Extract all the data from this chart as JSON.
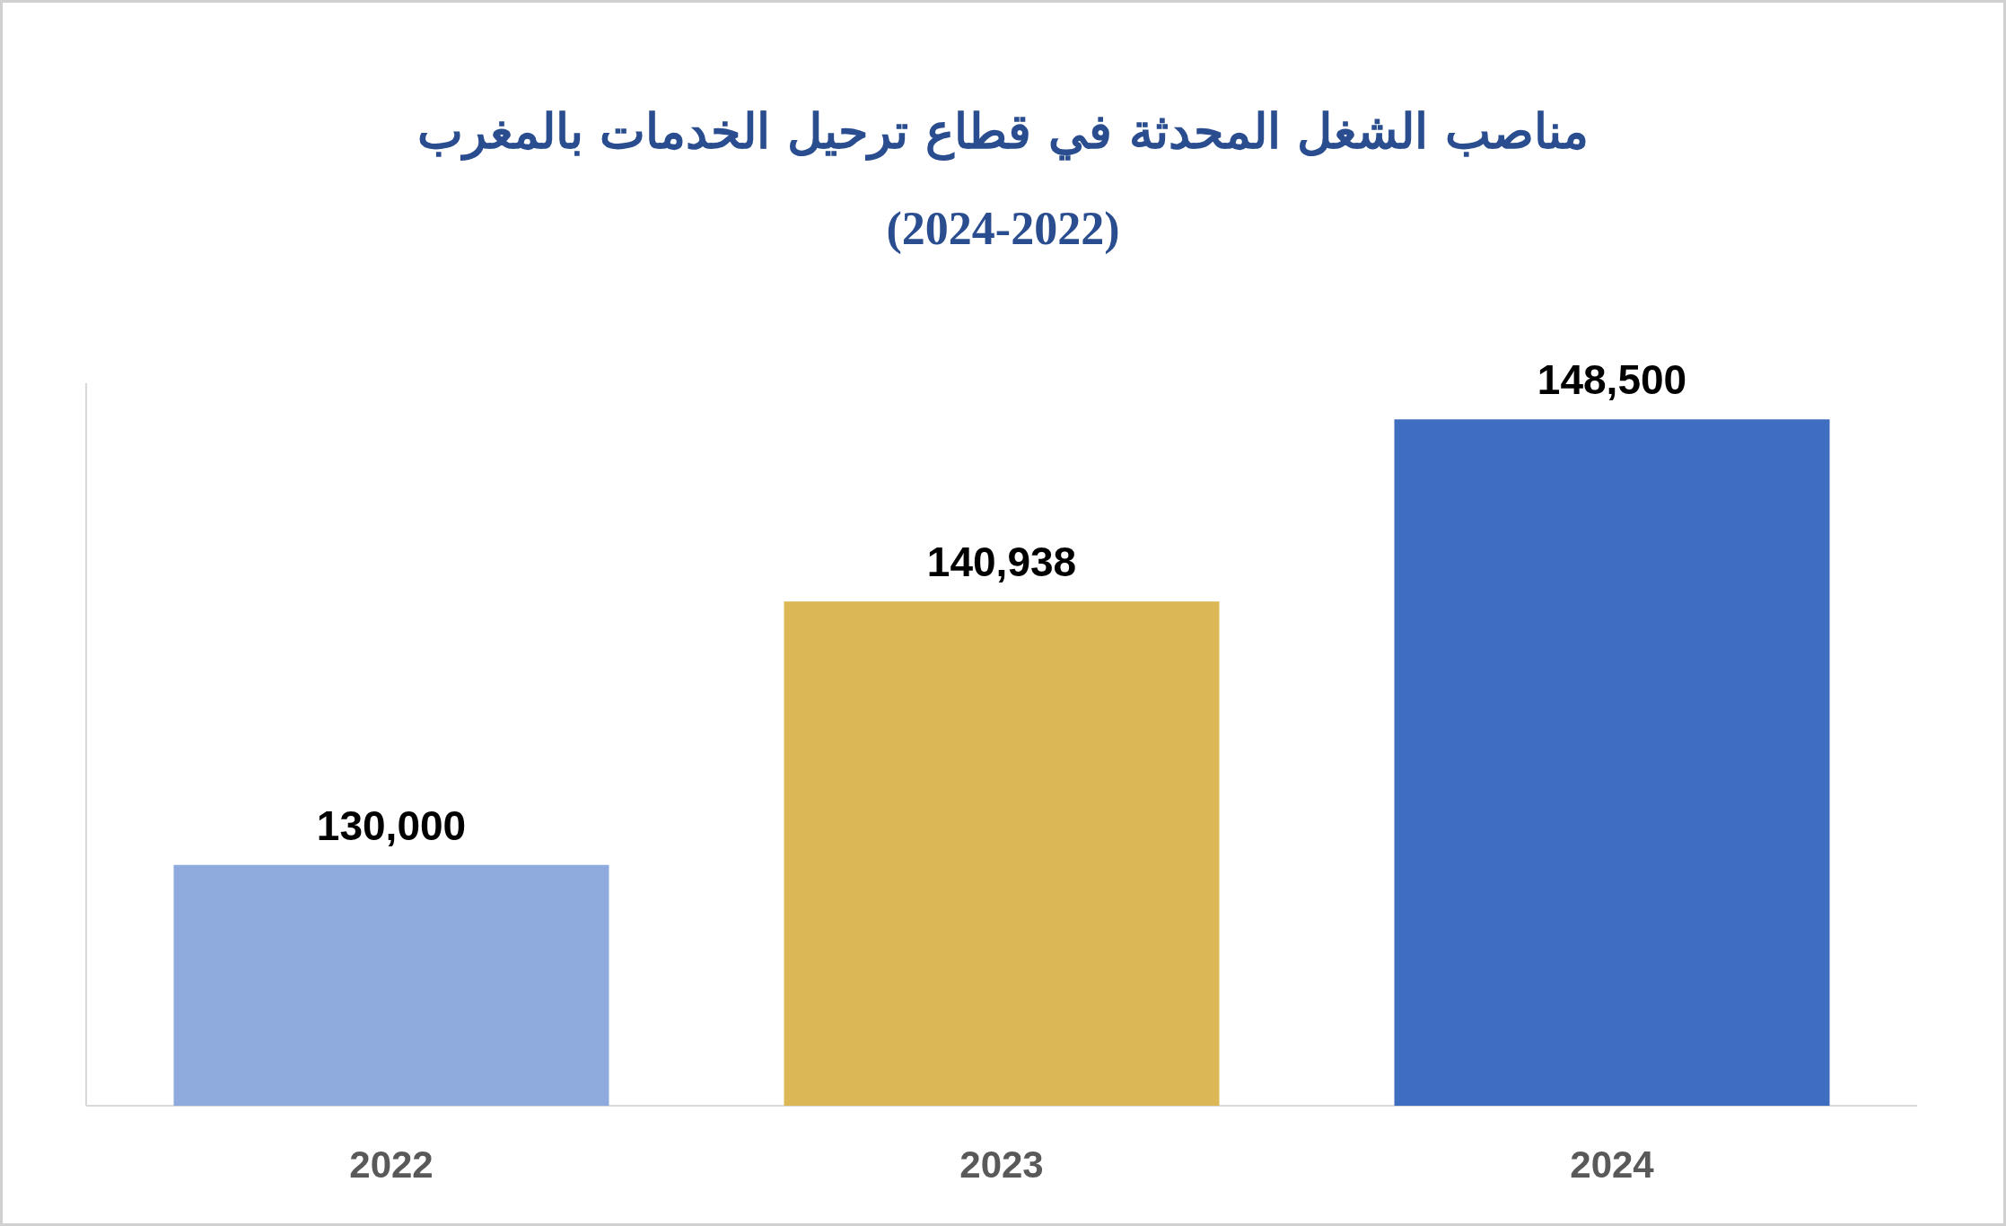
{
  "chart_data": {
    "type": "bar",
    "title": "مناصب الشغل المحدثة في قطاع ترحيل الخدمات بالمغرب",
    "subtitle": "(2024-2022)",
    "categories": [
      "2022",
      "2023",
      "2024"
    ],
    "values": [
      130000,
      140938,
      148500
    ],
    "value_labels": [
      "130,000",
      "140,938",
      "148,500"
    ],
    "colors": [
      "#8faadc",
      "#dbb756",
      "#3f6dbf"
    ],
    "ylim": [
      120000,
      150000
    ]
  }
}
